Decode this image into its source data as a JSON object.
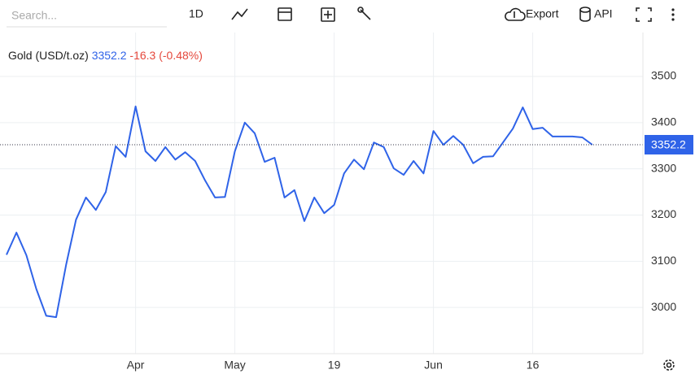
{
  "toolbar": {
    "search_placeholder": "Search...",
    "interval": "1D",
    "export": "Export",
    "api": "API"
  },
  "chart_data": {
    "type": "line",
    "title": "Gold (USD/t.oz)",
    "change": -16.3,
    "change_pct": "(-0.48%)",
    "change_color": "#e5483c",
    "categories": [
      null,
      null,
      null,
      null,
      null,
      null,
      null,
      null,
      null,
      null,
      null,
      null,
      null,
      "Apr",
      null,
      null,
      null,
      null,
      null,
      null,
      null,
      null,
      null,
      "May",
      null,
      null,
      null,
      null,
      null,
      null,
      null,
      null,
      null,
      "19",
      null,
      null,
      null,
      null,
      null,
      null,
      null,
      null,
      null,
      "Jun",
      null,
      null,
      null,
      null,
      null,
      null,
      null,
      null,
      null,
      "16",
      null,
      null,
      null,
      null,
      null,
      null
    ],
    "series": [
      {
        "name": "Gold",
        "color": "#2f63e8",
        "values": [
          3114,
          3162,
          3113,
          3040,
          2982,
          2979,
          3092,
          3190,
          3238,
          3211,
          3250,
          3349,
          3326,
          3435,
          3338,
          3317,
          3347,
          3320,
          3336,
          3317,
          3275,
          3238,
          3239,
          3338,
          3400,
          3377,
          3315,
          3324,
          3238,
          3254,
          3187,
          3238,
          3204,
          3222,
          3290,
          3320,
          3299,
          3357,
          3347,
          3301,
          3287,
          3317,
          3290,
          3382,
          3352,
          3371,
          3352,
          3312,
          3326,
          3327,
          3357,
          3387,
          3433,
          3386,
          3389,
          3370,
          3370,
          3370,
          3368,
          3352.2
        ]
      }
    ],
    "ylim": [
      2900,
      3595
    ],
    "yticks": [
      3000,
      3100,
      3200,
      3300,
      3400,
      3500
    ],
    "grid": true
  }
}
